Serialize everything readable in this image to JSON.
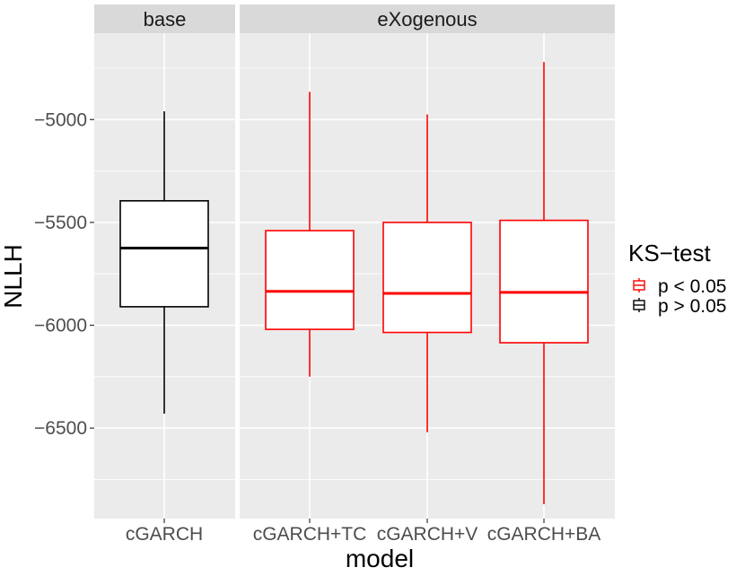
{
  "chart_data": {
    "type": "boxplot",
    "xlabel": "model",
    "ylabel": "NLLH",
    "ylim": [
      -6940,
      -4580
    ],
    "y_major_ticks": [
      -5000,
      -5500,
      -6000,
      -6500
    ],
    "y_tick_labels": [
      "−5000",
      "−5500",
      "−6000",
      "−6500"
    ],
    "y_minor_ticks": [
      -4750,
      -5250,
      -5750,
      -6250,
      -6750
    ],
    "grid": true,
    "legend": {
      "title": "KS−test",
      "position": "right",
      "entries": [
        {
          "label": "p < 0.05",
          "color": "#ff0000"
        },
        {
          "label": "p > 0.05",
          "color": "#000000"
        }
      ]
    },
    "facets": [
      {
        "label": "base",
        "boxes": [
          {
            "category": "cGARCH",
            "ks_group": "p > 0.05",
            "color": "#000000",
            "whisker_low": -6430,
            "q1": -5910,
            "median": -5625,
            "q3": -5395,
            "whisker_high": -4960
          }
        ]
      },
      {
        "label": "eXogenous",
        "boxes": [
          {
            "category": "cGARCH+TC",
            "ks_group": "p < 0.05",
            "color": "#ff0000",
            "whisker_low": -6250,
            "q1": -6020,
            "median": -5835,
            "q3": -5540,
            "whisker_high": -4865
          },
          {
            "category": "cGARCH+V",
            "ks_group": "p < 0.05",
            "color": "#ff0000",
            "whisker_low": -6520,
            "q1": -6035,
            "median": -5845,
            "q3": -5500,
            "whisker_high": -4975
          },
          {
            "category": "cGARCH+BA",
            "ks_group": "p < 0.05",
            "color": "#ff0000",
            "whisker_low": -6870,
            "q1": -6085,
            "median": -5840,
            "q3": -5490,
            "whisker_high": -4720
          }
        ]
      }
    ]
  }
}
